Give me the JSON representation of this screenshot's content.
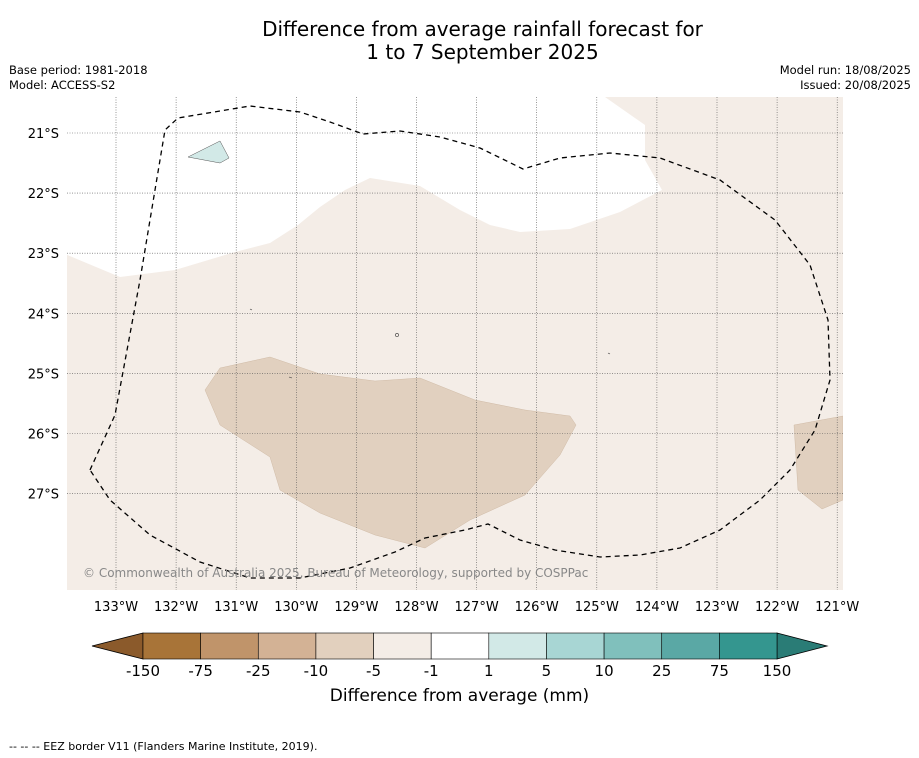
{
  "header": {
    "title_line1": "Difference from average rainfall forecast for",
    "title_line2": "1 to 7 September 2025",
    "base_period": "Base period: 1981-2018",
    "model": "Model: ACCESS-S2",
    "model_run": "Model run: 18/08/2025",
    "issued": "Issued: 20/08/2025"
  },
  "map": {
    "copyright": "© Commonwealth of Australia 2025, Bureau of Meteorology, supported by COSPPac",
    "longitude_labels": [
      "133°W",
      "132°W",
      "131°W",
      "130°W",
      "129°W",
      "128°W",
      "127°W",
      "126°W",
      "125°W",
      "124°W",
      "123°W",
      "122°W",
      "121°W"
    ],
    "latitude_labels": [
      "21°S",
      "22°S",
      "23°S",
      "24°S",
      "25°S",
      "26°S",
      "27°S"
    ],
    "lon_range": [
      -133.8,
      -120.9
    ],
    "lat_range": [
      -28.6,
      -20.4
    ],
    "eez_line_style": "dashed",
    "background_category": "-5 to -1",
    "colors": {
      "pale_tan": "#f4ede7",
      "tan": "#e1d0bf",
      "pale_teal": "#d2e9e7",
      "no_change": "#ffffff"
    }
  },
  "colorbar": {
    "label": "Difference from average (mm)",
    "tick_labels": [
      "-150",
      "-75",
      "-25",
      "-10",
      "-5",
      "-1",
      "1",
      "5",
      "10",
      "25",
      "75",
      "150"
    ],
    "colors": [
      "#a87438",
      "#c0946a",
      "#d3b295",
      "#e2d0be",
      "#f4ede7",
      "#ffffff",
      "#d2e9e7",
      "#a8d6d4",
      "#80c0bc",
      "#5aa8a5",
      "#34968f"
    ],
    "extend_low_color": "#8b5a2b",
    "extend_high_color": "#2a7c76"
  },
  "footnote": "--  --  -- EEZ border V11 (Flanders Marine Institute, 2019)."
}
